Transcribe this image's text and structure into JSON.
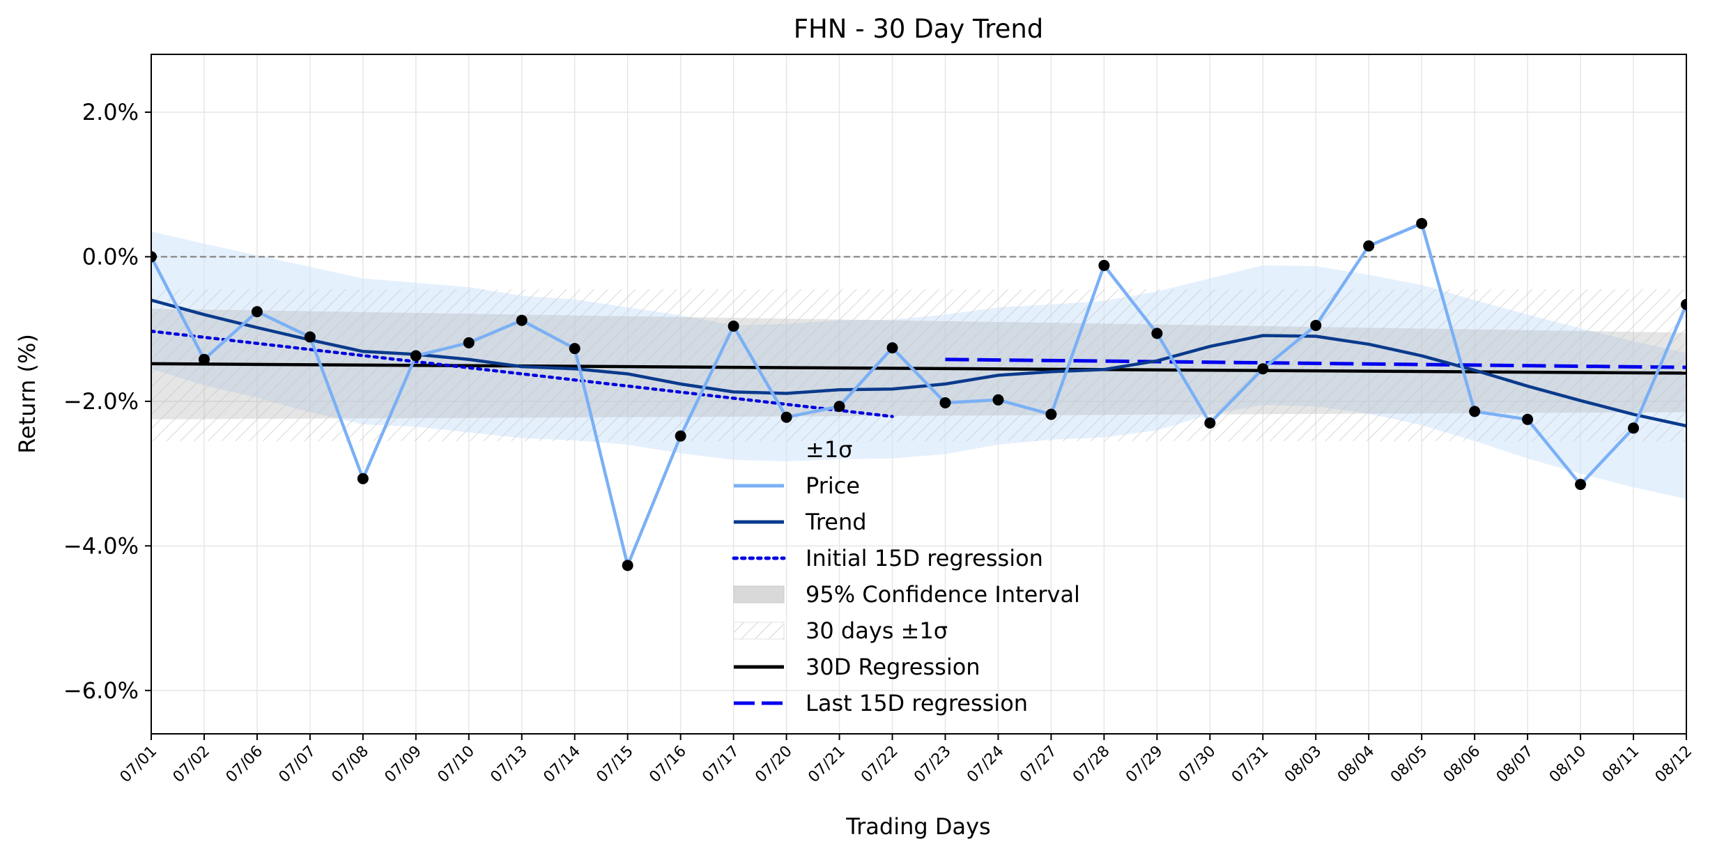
{
  "chart_data": {
    "type": "line",
    "title": "FHN - 30 Day Trend",
    "xlabel": "Trading Days",
    "ylabel": "Return (%)",
    "ylim": [
      -6.6,
      2.8
    ],
    "yticks": [
      2.0,
      0.0,
      -2.0,
      -4.0,
      -6.0
    ],
    "ytick_labels": [
      "2.0%",
      "0.0%",
      "−2.0%",
      "−4.0%",
      "−6.0%"
    ],
    "grid": true,
    "zero_line": 0.0,
    "categories": [
      "07/01",
      "07/02",
      "07/06",
      "07/07",
      "07/08",
      "07/09",
      "07/10",
      "07/13",
      "07/14",
      "07/15",
      "07/16",
      "07/17",
      "07/20",
      "07/21",
      "07/22",
      "07/23",
      "07/24",
      "07/27",
      "07/28",
      "07/29",
      "07/30",
      "07/31",
      "08/03",
      "08/04",
      "08/05",
      "08/06",
      "08/07",
      "08/10",
      "08/11",
      "08/12"
    ],
    "series": [
      {
        "name": "Price",
        "color": "#7ab0f5",
        "values": [
          0.0,
          -1.42,
          -0.76,
          -1.11,
          -3.07,
          -1.37,
          -1.19,
          -0.88,
          -1.27,
          -4.27,
          -2.48,
          -0.96,
          -2.22,
          -2.07,
          -1.26,
          -2.02,
          -1.98,
          -2.18,
          -0.12,
          -1.06,
          -2.3,
          -1.55,
          -0.95,
          0.15,
          0.46,
          -2.14,
          -2.25,
          -3.15,
          -2.37,
          -0.66
        ]
      },
      {
        "name": "Trend",
        "color": "#0a3a8c",
        "values": [
          -0.6,
          -0.8,
          -0.98,
          -1.15,
          -1.31,
          -1.35,
          -1.42,
          -1.52,
          -1.55,
          -1.62,
          -1.76,
          -1.87,
          -1.89,
          -1.84,
          -1.83,
          -1.76,
          -1.64,
          -1.59,
          -1.56,
          -1.44,
          -1.24,
          -1.09,
          -1.1,
          -1.21,
          -1.37,
          -1.57,
          -1.79,
          -1.99,
          -2.18,
          -2.34
        ]
      },
      {
        "name": "30D Regression",
        "color": "#000000",
        "start": -1.48,
        "end": -1.61
      },
      {
        "name": "Initial 15D regression",
        "color": "#0000dd",
        "start": -1.03,
        "end": -2.21
      },
      {
        "name": "Last 15D regression",
        "color": "#0000ee",
        "start": -1.42,
        "end": -1.53
      },
      {
        "name": "±1σ",
        "type": "band",
        "color": "#cfe4fb",
        "upper": [
          0.35,
          0.18,
          0.02,
          -0.14,
          -0.3,
          -0.36,
          -0.42,
          -0.54,
          -0.59,
          -0.7,
          -0.81,
          -0.95,
          -0.93,
          -0.88,
          -0.87,
          -0.8,
          -0.7,
          -0.66,
          -0.61,
          -0.48,
          -0.3,
          -0.12,
          -0.13,
          -0.25,
          -0.39,
          -0.6,
          -0.8,
          -0.99,
          -1.17,
          -1.33
        ],
        "lower": [
          -1.55,
          -1.78,
          -1.95,
          -2.15,
          -2.32,
          -2.35,
          -2.43,
          -2.51,
          -2.54,
          -2.6,
          -2.72,
          -2.81,
          -2.83,
          -2.8,
          -2.79,
          -2.73,
          -2.6,
          -2.53,
          -2.5,
          -2.4,
          -2.18,
          -2.05,
          -2.07,
          -2.17,
          -2.33,
          -2.55,
          -2.79,
          -3.0,
          -3.19,
          -3.35
        ]
      },
      {
        "name": "95% Confidence Interval",
        "type": "band",
        "color": "#d9d9d9",
        "upper_start": -0.72,
        "upper_end": -1.05,
        "lower_start": -2.25,
        "lower_end": -2.15
      },
      {
        "name": "30 days ±1σ",
        "type": "band",
        "color": "#e6e6e6",
        "upper": -0.45,
        "lower": -2.55
      }
    ],
    "legend": {
      "position": "lower-center",
      "entries": [
        "±1σ",
        "Price",
        "Trend",
        "Initial 15D regression",
        "95% Confidence Interval",
        "30 days ±1σ",
        "30D Regression",
        "Last 15D regression"
      ]
    }
  }
}
